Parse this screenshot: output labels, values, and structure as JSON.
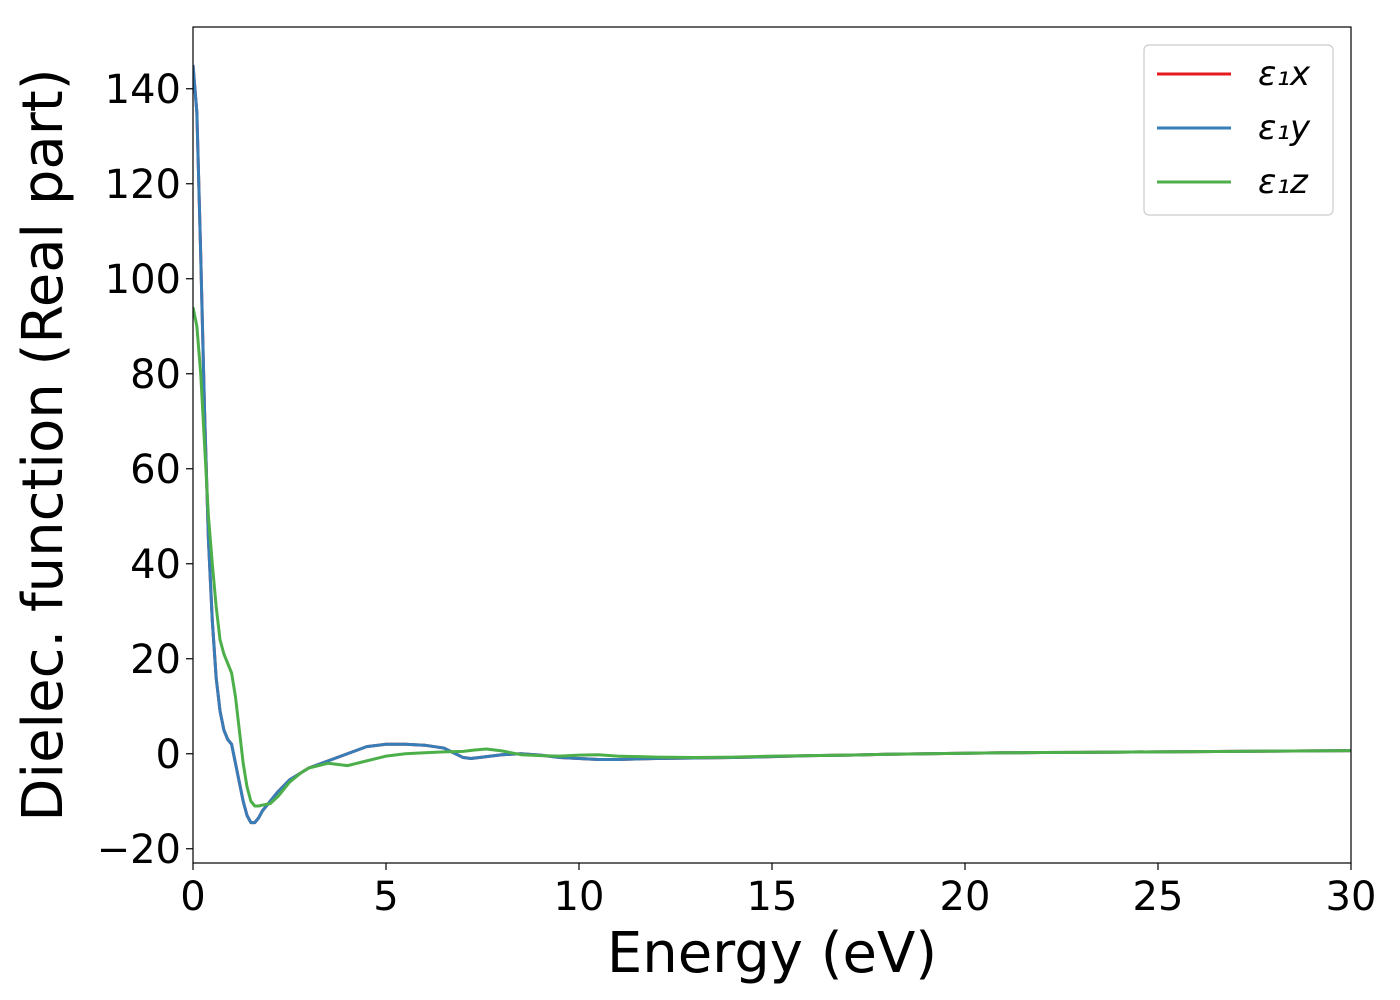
{
  "chart_data": {
    "type": "line",
    "xlabel": "Energy (eV)",
    "ylabel": "Dielec. function (Real part)",
    "xlim": [
      0,
      30
    ],
    "ylim": [
      -23,
      153
    ],
    "xticks": [
      0,
      5,
      10,
      15,
      20,
      25,
      30
    ],
    "yticks": [
      -20,
      0,
      20,
      40,
      60,
      80,
      100,
      120,
      140
    ],
    "xtick_labels": [
      "0",
      "5",
      "10",
      "15",
      "20",
      "25",
      "30"
    ],
    "ytick_labels": [
      "−20",
      "0",
      "20",
      "40",
      "60",
      "80",
      "100",
      "120",
      "140"
    ],
    "grid": false,
    "legend_position": "upper right",
    "series": [
      {
        "name": "ε₁x",
        "color": "#e41a1c",
        "x": [
          0,
          0.1,
          0.2,
          0.3,
          0.4,
          0.5,
          0.6,
          0.7,
          0.8,
          0.9,
          1.0,
          1.1,
          1.2,
          1.3,
          1.4,
          1.5,
          1.6,
          1.7,
          1.8,
          2.0,
          2.2,
          2.5,
          3.0,
          3.5,
          4.0,
          4.5,
          5.0,
          5.5,
          6.0,
          6.5,
          6.8,
          7.0,
          7.2,
          7.5,
          8.0,
          8.5,
          9.0,
          9.5,
          10.0,
          10.5,
          11,
          12,
          13,
          14,
          15,
          16,
          17,
          18,
          19,
          20,
          21,
          22,
          23,
          24,
          25,
          26,
          27,
          28,
          29,
          30
        ],
        "y": [
          145,
          135,
          105,
          72,
          45,
          28,
          16,
          9,
          5,
          3,
          2,
          -2,
          -6,
          -10,
          -13,
          -14.5,
          -14.5,
          -13.5,
          -12,
          -10,
          -8,
          -5.5,
          -3,
          -1.5,
          0,
          1.5,
          2,
          2,
          1.8,
          1.2,
          0,
          -0.8,
          -1,
          -0.7,
          -0.2,
          0,
          -0.3,
          -0.8,
          -1,
          -1.2,
          -1.2,
          -1,
          -0.9,
          -0.8,
          -0.6,
          -0.4,
          -0.3,
          -0.1,
          0,
          0.1,
          0.2,
          0.25,
          0.3,
          0.35,
          0.4,
          0.45,
          0.5,
          0.55,
          0.6,
          0.65
        ]
      },
      {
        "name": "ε₁y",
        "color": "#377eb8",
        "x": [
          0,
          0.1,
          0.2,
          0.3,
          0.4,
          0.5,
          0.6,
          0.7,
          0.8,
          0.9,
          1.0,
          1.1,
          1.2,
          1.3,
          1.4,
          1.5,
          1.6,
          1.7,
          1.8,
          2.0,
          2.2,
          2.5,
          3.0,
          3.5,
          4.0,
          4.5,
          5.0,
          5.5,
          6.0,
          6.5,
          6.8,
          7.0,
          7.2,
          7.5,
          8.0,
          8.5,
          9.0,
          9.5,
          10.0,
          10.5,
          11,
          12,
          13,
          14,
          15,
          16,
          17,
          18,
          19,
          20,
          21,
          22,
          23,
          24,
          25,
          26,
          27,
          28,
          29,
          30
        ],
        "y": [
          145,
          135,
          105,
          72,
          45,
          28,
          16,
          9,
          5,
          3,
          2,
          -2,
          -6,
          -10,
          -13,
          -14.5,
          -14.5,
          -13.5,
          -12,
          -10,
          -8,
          -5.5,
          -3,
          -1.5,
          0,
          1.5,
          2,
          2,
          1.8,
          1.2,
          0,
          -0.8,
          -1,
          -0.7,
          -0.2,
          0,
          -0.3,
          -0.8,
          -1,
          -1.2,
          -1.2,
          -1,
          -0.9,
          -0.8,
          -0.6,
          -0.4,
          -0.3,
          -0.1,
          0,
          0.1,
          0.2,
          0.25,
          0.3,
          0.35,
          0.4,
          0.45,
          0.5,
          0.55,
          0.6,
          0.65
        ]
      },
      {
        "name": "ε₁z",
        "color": "#4daf4a",
        "x": [
          0,
          0.1,
          0.2,
          0.3,
          0.4,
          0.5,
          0.6,
          0.7,
          0.8,
          0.9,
          1.0,
          1.1,
          1.2,
          1.3,
          1.4,
          1.5,
          1.6,
          1.7,
          1.8,
          2.0,
          2.2,
          2.5,
          2.8,
          3.0,
          3.5,
          4.0,
          4.5,
          5.0,
          5.5,
          6.0,
          6.5,
          7.0,
          7.3,
          7.6,
          8.0,
          8.5,
          9.0,
          9.5,
          10.0,
          10.5,
          11,
          12,
          13,
          14,
          15,
          16,
          17,
          18,
          19,
          20,
          21,
          22,
          23,
          24,
          25,
          26,
          27,
          28,
          29,
          30
        ],
        "y": [
          94,
          90,
          80,
          65,
          50,
          40,
          31,
          24,
          21,
          19,
          17,
          12,
          5,
          -2,
          -7,
          -10,
          -11,
          -11,
          -10.8,
          -10.5,
          -9,
          -6,
          -4,
          -3,
          -2,
          -2.5,
          -1.5,
          -0.5,
          0,
          0.2,
          0.4,
          0.5,
          0.8,
          1.0,
          0.6,
          -0.2,
          -0.4,
          -0.5,
          -0.3,
          -0.2,
          -0.5,
          -0.7,
          -0.8,
          -0.7,
          -0.5,
          -0.4,
          -0.3,
          -0.1,
          0,
          0.1,
          0.2,
          0.25,
          0.3,
          0.35,
          0.4,
          0.45,
          0.5,
          0.55,
          0.6,
          0.65
        ]
      }
    ]
  }
}
